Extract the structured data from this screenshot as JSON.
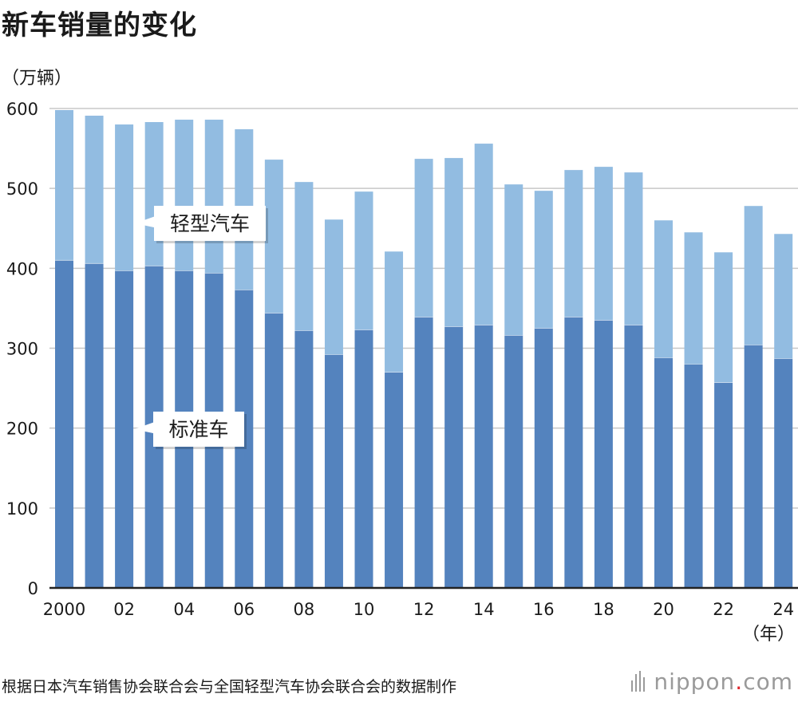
{
  "header": {
    "title": "新车销量的变化",
    "unit_label": "（万辆）",
    "year_unit_label": "（年）"
  },
  "footer": {
    "source": "根据日本汽车销售协会联合会与全国轻型汽车协会联合会的数据制作",
    "logo_main": "nippon",
    "logo_dot": ".",
    "logo_tld": "com"
  },
  "colors": {
    "standard": "#5483be",
    "kei": "#92bce1",
    "grid": "#c8c8c8",
    "axis": "#222222"
  },
  "chart_data": {
    "type": "bar",
    "stacked": true,
    "title": "新车销量的变化",
    "ylabel": "（万辆）",
    "xlabel": "（年）",
    "ylim": [
      0,
      600
    ],
    "yticks": [
      0,
      100,
      200,
      300,
      400,
      500,
      600
    ],
    "grid": true,
    "categories": [
      "2000",
      "2001",
      "2002",
      "2003",
      "2004",
      "2005",
      "2006",
      "2007",
      "2008",
      "2009",
      "2010",
      "2011",
      "2012",
      "2013",
      "2014",
      "2015",
      "2016",
      "2017",
      "2018",
      "2019",
      "2020",
      "2021",
      "2022",
      "2023",
      "2024"
    ],
    "xtick_labels": [
      "2000",
      "",
      "02",
      "",
      "04",
      "",
      "06",
      "",
      "08",
      "",
      "10",
      "",
      "12",
      "",
      "14",
      "",
      "16",
      "",
      "18",
      "",
      "20",
      "",
      "22",
      "",
      "24"
    ],
    "series": [
      {
        "name": "标准车",
        "values": [
          410,
          406,
          397,
          403,
          397,
          394,
          373,
          344,
          322,
          292,
          323,
          270,
          339,
          327,
          329,
          316,
          325,
          339,
          335,
          329,
          288,
          280,
          257,
          304,
          287
        ]
      },
      {
        "name": "轻型汽车",
        "values": [
          188,
          185,
          183,
          180,
          189,
          192,
          201,
          192,
          186,
          169,
          173,
          151,
          198,
          211,
          227,
          189,
          172,
          184,
          192,
          191,
          172,
          165,
          163,
          174,
          156
        ]
      }
    ],
    "totals": [
      598,
      591,
      580,
      583,
      586,
      586,
      574,
      536,
      508,
      461,
      496,
      421,
      537,
      538,
      556,
      505,
      497,
      523,
      527,
      520,
      460,
      445,
      420,
      478,
      443
    ],
    "annotations": [
      {
        "text": "轻型汽车",
        "series": "轻型汽车"
      },
      {
        "text": "标准车",
        "series": "标准车"
      }
    ]
  }
}
